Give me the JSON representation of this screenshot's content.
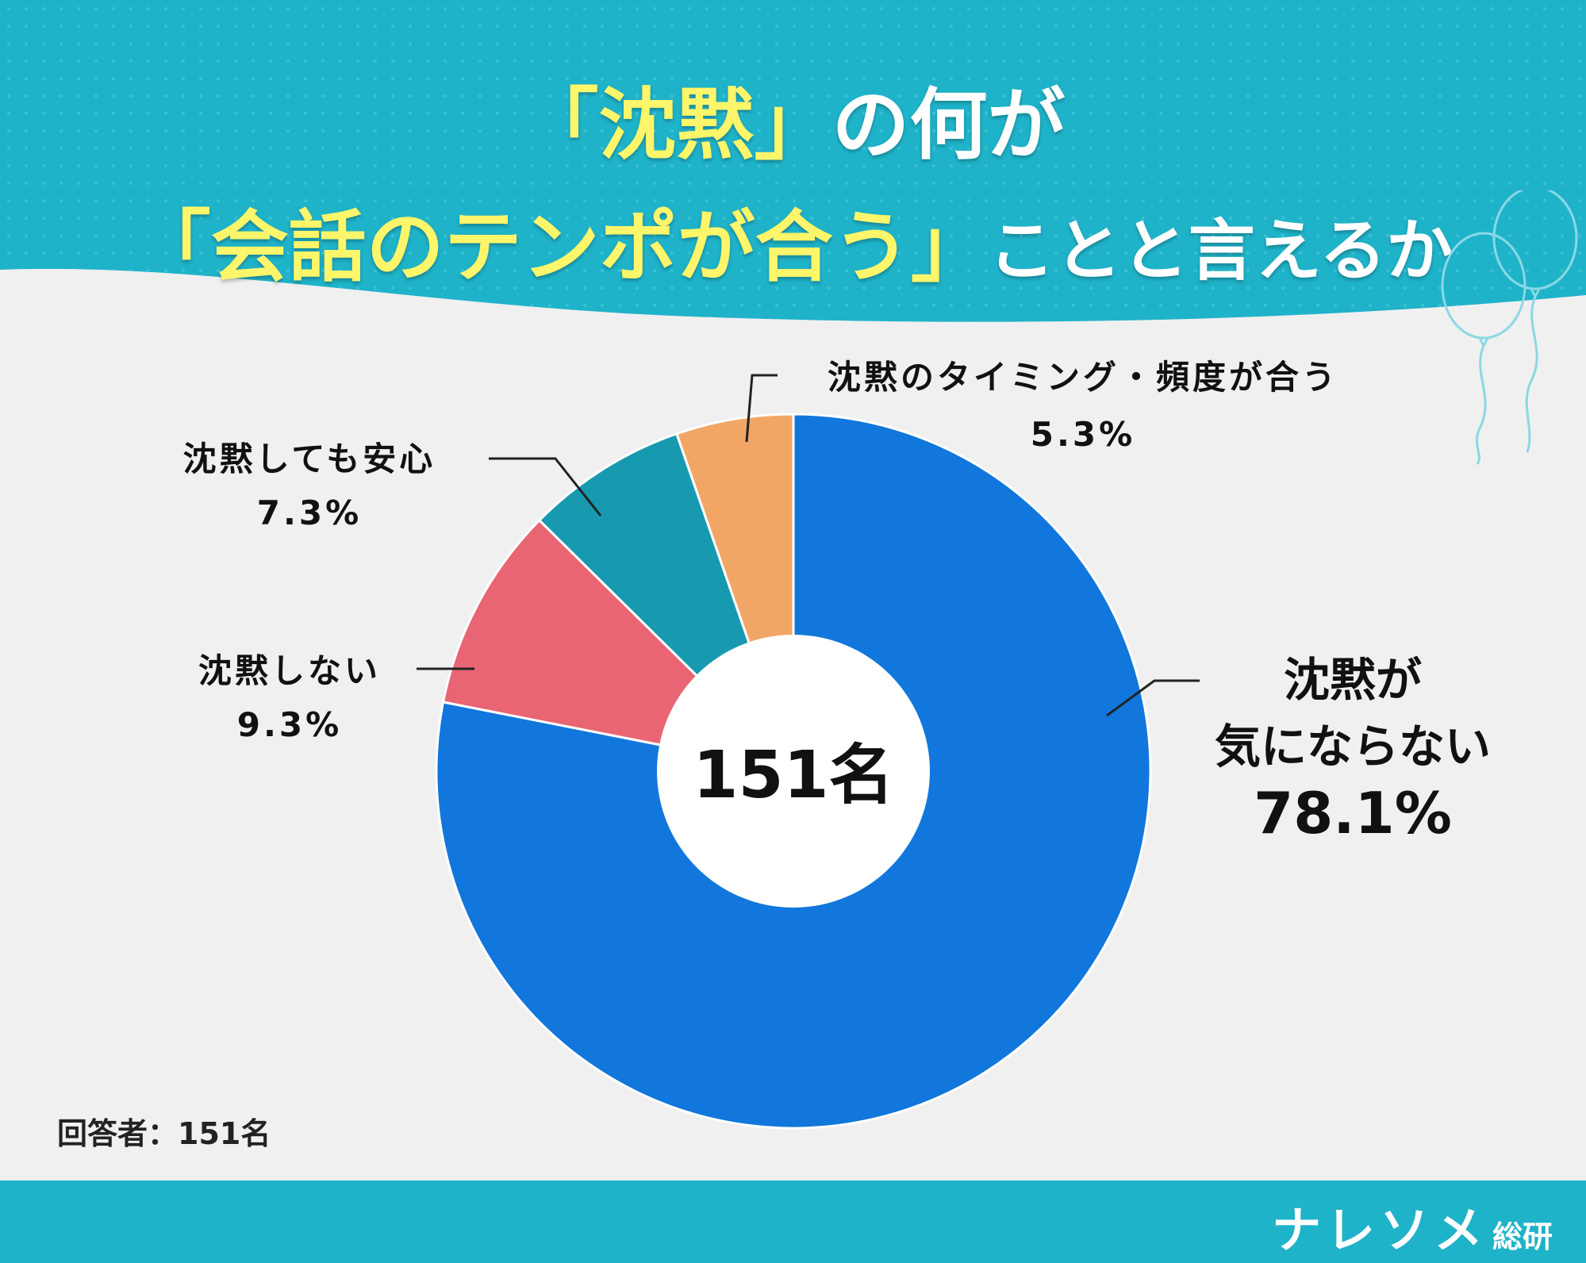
{
  "header": {
    "title_line1_highlight": "「沈黙」",
    "title_line1_rest": "の何が",
    "title_line2_highlight": "「会話のテンポが合う」",
    "title_line2_rest": "ことと言えるか",
    "background_color": "#1fb3c9",
    "highlight_color": "#fdf56a"
  },
  "chart_data": {
    "type": "pie",
    "title": "「沈黙」の何が「会話のテンポが合う」ことと言えるか",
    "center_label": "151名",
    "categories": [
      "沈黙が気にならない",
      "沈黙しない",
      "沈黙しても安心",
      "沈黙のタイミング・頻度が合う"
    ],
    "values": [
      78.1,
      9.3,
      7.3,
      5.3
    ],
    "value_labels": [
      "78.1%",
      "9.3%",
      "7.3%",
      "5.3%"
    ],
    "colors": [
      "#1177dc",
      "#e96574",
      "#1799b0",
      "#f2a666"
    ],
    "label_lines": [
      [
        "沈黙が",
        "気にならない"
      ],
      [
        "沈黙しない"
      ],
      [
        "沈黙しても安心"
      ],
      [
        "沈黙のタイミング・頻度が合う"
      ]
    ],
    "donut": true,
    "start": "top",
    "direction": "clockwise"
  },
  "note": "回答者：151名",
  "footer": {
    "brand": "ナレソメ",
    "brand_sub": "総研",
    "background_color": "#1fb3c9"
  },
  "decorations": {
    "balloons_icon": "balloons-outline-icon"
  }
}
